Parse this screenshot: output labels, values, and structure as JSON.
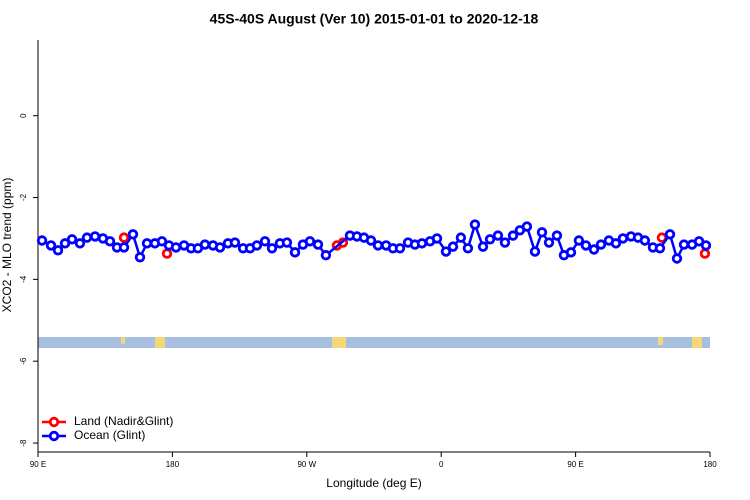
{
  "chart_data": {
    "type": "line",
    "title": "45S-40S August (Ver 10)   2015-01-01 to 2020-12-18",
    "x_label": "Longitude (deg E)",
    "y_label": "XCO2 - MLO trend (ppm)",
    "xlim": [
      90,
      540
    ],
    "xticks": [
      {
        "value": 90,
        "label": "90 E"
      },
      180,
      {
        "value": 270,
        "label": "90 W"
      },
      {
        "value": 360,
        "label": "0"
      },
      {
        "value": 450,
        "label": "90 E"
      },
      {
        "value": 540,
        "label": "180"
      }
    ],
    "ylim": [
      -8.17,
      1.85
    ],
    "yticks": [
      -8,
      -6,
      -4,
      -2,
      0
    ],
    "legend": "bottom-left",
    "series": [
      {
        "name": "Land (Nadir&Glint)",
        "color": "#ff0000",
        "x": [
          147.6,
          null,
          176.4,
          null,
          290.2,
          294.2,
          null,
          507.8,
          null,
          536.6
        ],
        "values": [
          -2.98,
          null,
          -3.37,
          null,
          -3.17,
          -3.1,
          null,
          -2.98,
          null,
          -3.37
        ]
      },
      {
        "name": "Ocean (Glint)",
        "color": "#0000ff",
        "x": [
          92.7,
          98.7,
          103.4,
          108.1,
          112.8,
          118.1,
          122.8,
          128.2,
          133.5,
          138.2,
          142.9,
          147.6,
          153.6,
          158.3,
          163.0,
          168.3,
          173.0,
          177.7,
          182.4,
          187.8,
          192.5,
          197.1,
          201.8,
          207.2,
          211.9,
          217.2,
          221.9,
          227.3,
          232.0,
          236.6,
          242.0,
          246.7,
          252.0,
          256.7,
          262.1,
          267.4,
          272.1,
          277.5,
          282.8,
          298.9,
          303.6,
          308.3,
          313.0,
          317.7,
          323.1,
          327.7,
          332.4,
          337.8,
          342.4,
          347.1,
          352.5,
          357.2,
          363.2,
          367.9,
          373.2,
          377.9,
          382.6,
          388.0,
          392.7,
          398.0,
          402.7,
          408.1,
          412.7,
          417.4,
          422.8,
          427.5,
          432.2,
          437.5,
          442.2,
          446.9,
          452.2,
          456.9,
          462.3,
          467.0,
          472.3,
          477.0,
          481.7,
          487.1,
          491.8,
          496.4,
          501.8,
          506.5,
          513.2,
          517.9,
          522.6,
          528.0,
          532.7,
          537.3
        ],
        "values": [
          -3.05,
          -3.17,
          -3.29,
          -3.12,
          -3.02,
          -3.12,
          -2.98,
          -2.95,
          -3.0,
          -3.07,
          -3.22,
          -3.22,
          -2.9,
          -3.46,
          -3.12,
          -3.12,
          -3.07,
          -3.17,
          -3.22,
          -3.17,
          -3.24,
          -3.24,
          -3.15,
          -3.17,
          -3.22,
          -3.12,
          -3.1,
          -3.24,
          -3.24,
          -3.17,
          -3.07,
          -3.24,
          -3.12,
          -3.1,
          -3.34,
          -3.15,
          -3.07,
          -3.15,
          -3.41,
          -2.93,
          -2.95,
          -2.98,
          -3.05,
          -3.17,
          -3.17,
          -3.24,
          -3.24,
          -3.1,
          -3.15,
          -3.12,
          -3.07,
          -3.0,
          -3.32,
          -3.2,
          -2.98,
          -3.24,
          -2.66,
          -3.2,
          -3.02,
          -2.93,
          -3.1,
          -2.93,
          -2.8,
          -2.71,
          -3.32,
          -2.85,
          -3.1,
          -2.93,
          -3.41,
          -3.34,
          -3.05,
          -3.17,
          -3.27,
          -3.15,
          -3.05,
          -3.12,
          -3.0,
          -2.95,
          -2.98,
          -3.05,
          -3.22,
          -3.24,
          -2.9,
          -3.49,
          -3.15,
          -3.15,
          -3.07,
          -3.17
        ]
      }
    ]
  }
}
